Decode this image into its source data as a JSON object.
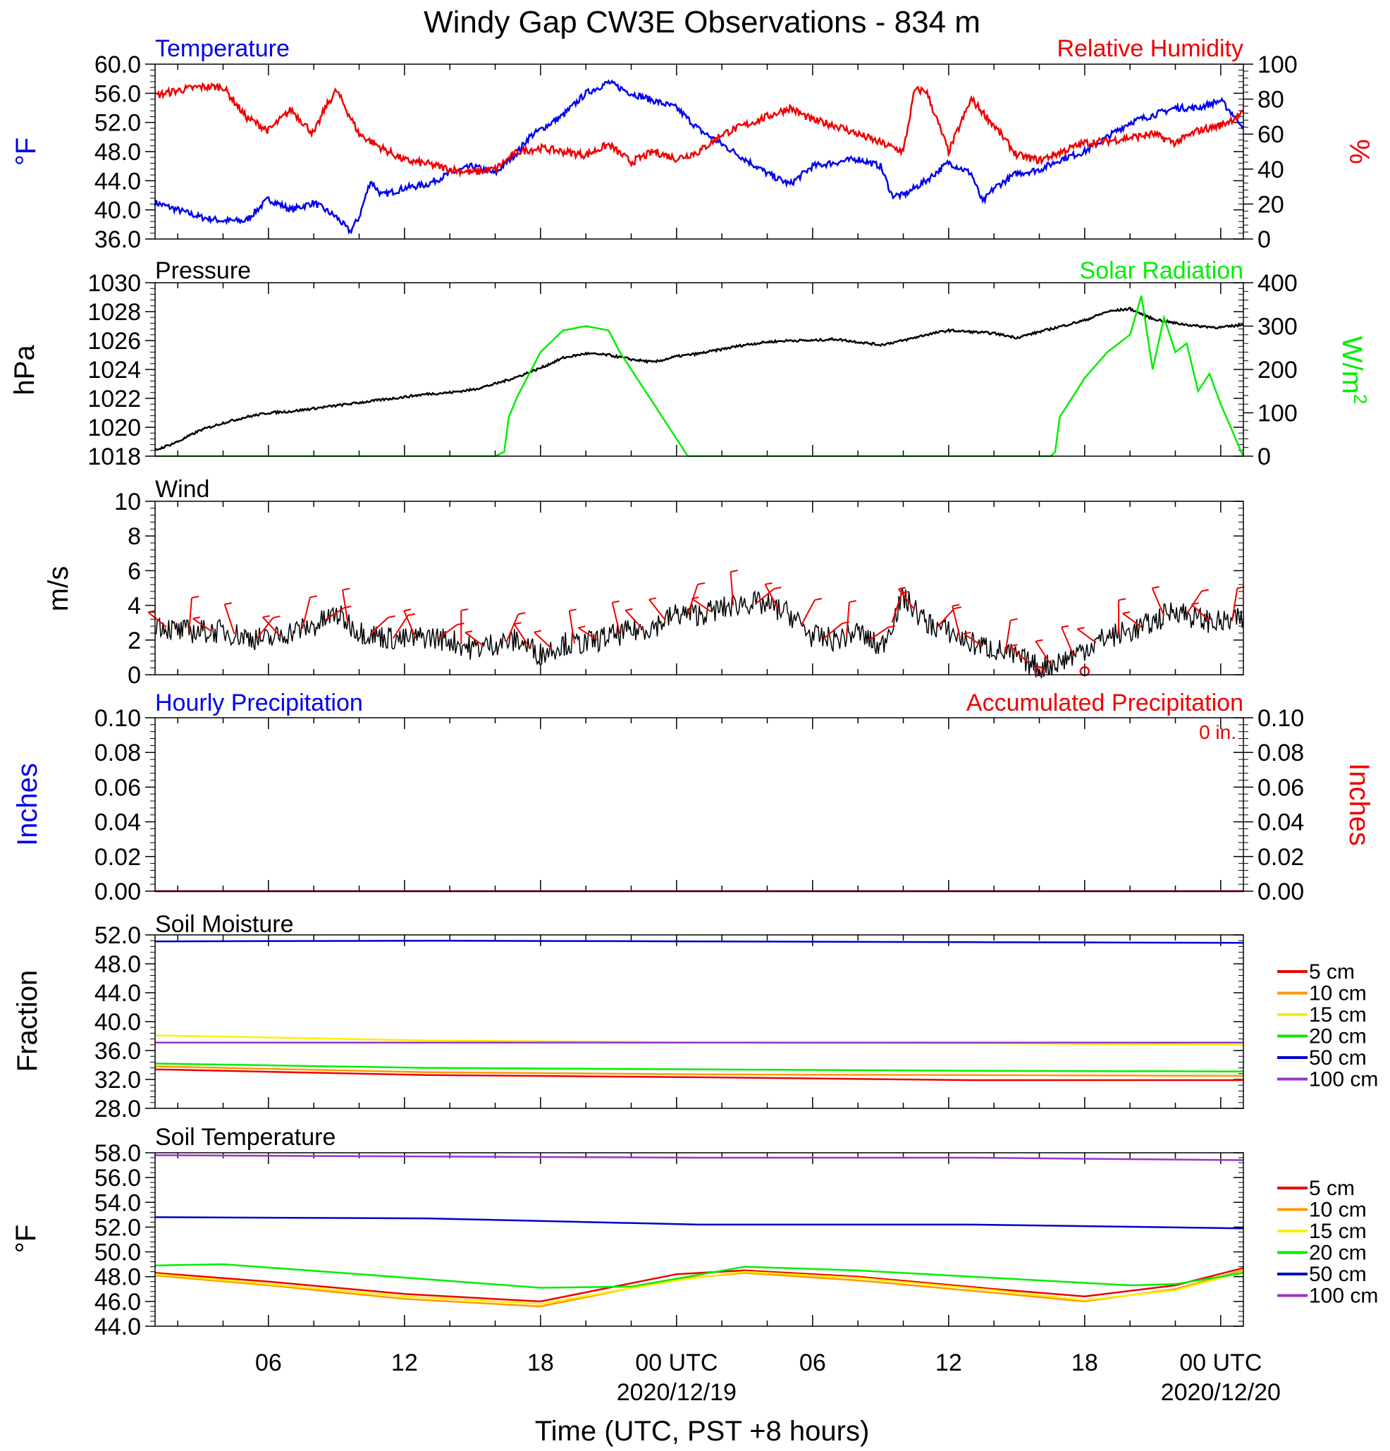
{
  "title": "Windy Gap CW3E Observations - 834 m",
  "xaxis": {
    "label": "Time (UTC, PST +8 hours)",
    "ticks": [
      {
        "hour": 6,
        "label": "06",
        "date": ""
      },
      {
        "hour": 12,
        "label": "12",
        "date": ""
      },
      {
        "hour": 18,
        "label": "18",
        "date": ""
      },
      {
        "hour": 24,
        "label": "00 UTC",
        "date": "2020/12/19"
      },
      {
        "hour": 30,
        "label": "06",
        "date": ""
      },
      {
        "hour": 36,
        "label": "12",
        "date": ""
      },
      {
        "hour": 42,
        "label": "18",
        "date": ""
      },
      {
        "hour": 48,
        "label": "00 UTC",
        "date": "2020/12/20"
      }
    ],
    "range_hours": [
      1,
      49
    ]
  },
  "colors": {
    "blue": "#0000ee",
    "red": "#ee0000",
    "green": "#00ee00",
    "black": "#000000",
    "orange": "#ff9900",
    "yellow": "#ffee00",
    "purple": "#9933cc",
    "darkblue": "#0000cc"
  },
  "panels": {
    "temp_rh": {
      "label_left": "Temperature",
      "label_right": "Relative Humidity",
      "ylabel_left": "°F",
      "ylabel_right": "%",
      "left_ticks": [
        "36.0",
        "40.0",
        "44.0",
        "48.0",
        "52.0",
        "56.0",
        "60.0"
      ],
      "right_ticks": [
        "0",
        "20",
        "40",
        "60",
        "80",
        "100"
      ]
    },
    "pressure_solar": {
      "label_left": "Pressure",
      "label_right": "Solar Radiation",
      "ylabel_left": "hPa",
      "ylabel_right": "W/m",
      "ylabel_right_sup": "2",
      "left_ticks": [
        "1018",
        "1020",
        "1022",
        "1024",
        "1026",
        "1028",
        "1030"
      ],
      "right_ticks": [
        "0",
        "100",
        "200",
        "300",
        "400"
      ]
    },
    "wind": {
      "label_left": "Wind",
      "ylabel_left": "m/s",
      "left_ticks": [
        "0",
        "2",
        "4",
        "6",
        "8",
        "10"
      ]
    },
    "precip": {
      "label_left": "Hourly Precipitation",
      "label_right": "Accumulated Precipitation",
      "total_text": "0 in.",
      "ylabel_left": "Inches",
      "ylabel_right": "Inches",
      "left_ticks": [
        "0.00",
        "0.02",
        "0.04",
        "0.06",
        "0.08",
        "0.10"
      ],
      "right_ticks": [
        "0.00",
        "0.02",
        "0.04",
        "0.06",
        "0.08",
        "0.10"
      ]
    },
    "soil_moisture": {
      "label_left": "Soil Moisture",
      "ylabel_left": "Fraction",
      "left_ticks": [
        "28.0",
        "32.0",
        "36.0",
        "40.0",
        "44.0",
        "48.0",
        "52.0"
      ],
      "legend": [
        "5 cm",
        "10 cm",
        "15 cm",
        "20 cm",
        "50 cm",
        "100 cm"
      ]
    },
    "soil_temp": {
      "label_left": "Soil Temperature",
      "ylabel_left": "°F",
      "left_ticks": [
        "44.0",
        "46.0",
        "48.0",
        "50.0",
        "52.0",
        "54.0",
        "56.0",
        "58.0"
      ],
      "legend": [
        "5 cm",
        "10 cm",
        "15 cm",
        "20 cm",
        "50 cm",
        "100 cm"
      ]
    }
  },
  "chart_data": [
    {
      "type": "line",
      "name": "temp_rh",
      "x_unit": "hours since 2020-12-18 00 UTC",
      "ylim": [
        36,
        60
      ],
      "y2lim": [
        0,
        100
      ],
      "series": [
        {
          "name": "Temperature",
          "color": "blue",
          "axis": "left",
          "x": [
            1,
            2,
            3,
            4,
            5,
            6,
            7,
            8,
            9,
            9.6,
            10,
            10.5,
            11,
            12,
            13,
            14,
            15,
            16,
            17,
            17.5,
            18,
            19,
            20,
            21,
            22,
            23,
            24,
            25,
            26,
            27,
            28,
            29,
            30,
            31,
            32,
            33,
            33.5,
            34,
            35,
            36,
            37,
            37.5,
            38,
            39,
            40,
            41,
            42,
            43,
            44,
            45,
            46,
            47,
            48,
            49
          ],
          "y": [
            41,
            40,
            39,
            38.5,
            38.5,
            41.5,
            40,
            41,
            39,
            37,
            39,
            44,
            42,
            43,
            43.5,
            45,
            46,
            45,
            48,
            50,
            51,
            53,
            56,
            57.5,
            56,
            55,
            54,
            51,
            49,
            47,
            45,
            43.5,
            46,
            46.5,
            47,
            46,
            42,
            42,
            44,
            46.5,
            45,
            41,
            43,
            45,
            45.5,
            47,
            48,
            50,
            52,
            53,
            54,
            54,
            55,
            51.5
          ]
        },
        {
          "name": "Relative Humidity",
          "color": "red",
          "axis": "right",
          "x": [
            1,
            2,
            3,
            4,
            5,
            6,
            7,
            8,
            8.5,
            9,
            10,
            11,
            12,
            13,
            14,
            15,
            16,
            17,
            18,
            19,
            20,
            21,
            22,
            23,
            24,
            25,
            26,
            27,
            28,
            29,
            30,
            31,
            32,
            33,
            34,
            34.5,
            35,
            36,
            37,
            38,
            39,
            40,
            41,
            42,
            43,
            44,
            45,
            46,
            47,
            48,
            49
          ],
          "y": [
            82,
            85,
            87,
            87,
            70,
            62,
            74,
            60,
            75,
            85,
            60,
            52,
            45,
            43,
            40,
            38,
            40,
            50,
            52,
            50,
            48,
            54,
            44,
            50,
            46,
            50,
            60,
            65,
            70,
            75,
            68,
            65,
            60,
            55,
            50,
            85,
            85,
            50,
            80,
            65,
            48,
            45,
            50,
            55,
            56,
            58,
            60,
            55,
            62,
            65,
            72
          ]
        }
      ]
    },
    {
      "type": "line",
      "name": "pressure_solar",
      "ylim": [
        1018,
        1030
      ],
      "y2lim": [
        0,
        400
      ],
      "series": [
        {
          "name": "Pressure",
          "color": "black",
          "axis": "left",
          "x": [
            1,
            2,
            3,
            4,
            5,
            6,
            7,
            8,
            9,
            10,
            11,
            12,
            13,
            14,
            15,
            16,
            17,
            18,
            19,
            20,
            21,
            22,
            23,
            24,
            25,
            26,
            27,
            28,
            29,
            30,
            31,
            32,
            33,
            34,
            35,
            36,
            37,
            38,
            39,
            40,
            41,
            42,
            43,
            44,
            45,
            46,
            47,
            48,
            49
          ],
          "y": [
            1018.4,
            1019,
            1019.8,
            1020.3,
            1020.7,
            1021,
            1021.1,
            1021.3,
            1021.5,
            1021.7,
            1021.9,
            1022.1,
            1022.3,
            1022.4,
            1022.6,
            1023,
            1023.5,
            1024.1,
            1024.8,
            1025.1,
            1025.0,
            1024.7,
            1024.5,
            1024.9,
            1025.1,
            1025.4,
            1025.7,
            1025.9,
            1026.0,
            1026.0,
            1026.1,
            1025.9,
            1025.7,
            1026.0,
            1026.4,
            1026.7,
            1026.6,
            1026.5,
            1026.2,
            1026.6,
            1027.0,
            1027.4,
            1028.0,
            1028.2,
            1027.5,
            1027.2,
            1027.0,
            1026.9,
            1027.1
          ]
        },
        {
          "name": "Solar Radiation",
          "color": "green",
          "axis": "right",
          "x": [
            1,
            10,
            16,
            16.4,
            16.6,
            17,
            18,
            19,
            20,
            21,
            21.5,
            22,
            23,
            24,
            24.5,
            25,
            30,
            38,
            40.5,
            40.7,
            40.9,
            42,
            43,
            44,
            44.5,
            45,
            45.5,
            46,
            46.5,
            47,
            47.5,
            48,
            48.5,
            48.9,
            49
          ],
          "y": [
            0,
            0,
            0,
            10,
            90,
            140,
            240,
            290,
            300,
            290,
            240,
            200,
            120,
            40,
            0,
            0,
            0,
            0,
            0,
            10,
            90,
            180,
            240,
            280,
            370,
            200,
            320,
            240,
            260,
            150,
            190,
            120,
            60,
            10,
            0
          ]
        }
      ]
    },
    {
      "type": "line",
      "name": "wind",
      "ylim": [
        0,
        10
      ],
      "series": [
        {
          "name": "Wind",
          "color": "black",
          "x": [
            1,
            2,
            3,
            4,
            5,
            6,
            7,
            8,
            9,
            10,
            11,
            12,
            13,
            14,
            15,
            16,
            17,
            18,
            19,
            20,
            21,
            22,
            23,
            24,
            25,
            26,
            27,
            28,
            29,
            30,
            31,
            32,
            33,
            34,
            35,
            36,
            37,
            38,
            39,
            40,
            41,
            42,
            43,
            44,
            45,
            46,
            47,
            48,
            49
          ],
          "y": [
            3,
            2.5,
            2.5,
            2.5,
            2.2,
            2,
            2.5,
            2.8,
            3.5,
            2.5,
            2.2,
            2.0,
            2.2,
            2.0,
            1.5,
            1.8,
            2.0,
            1.2,
            1.8,
            1.8,
            2.2,
            2.5,
            2.8,
            3.5,
            3.5,
            3.8,
            4.2,
            4.0,
            3.5,
            2.2,
            2.0,
            2.5,
            1.5,
            4.5,
            3.0,
            2.5,
            1.8,
            1.5,
            1.0,
            0.4,
            0.8,
            1.5,
            2.2,
            2.5,
            3.0,
            3.8,
            3.2,
            3.0,
            3.2
          ]
        }
      ]
    },
    {
      "type": "line",
      "name": "precip",
      "ylim": [
        0,
        0.1
      ],
      "series": [
        {
          "name": "Hourly Precipitation",
          "color": "blue",
          "x": [
            1,
            49
          ],
          "y": [
            0,
            0
          ]
        },
        {
          "name": "Accumulated Precipitation",
          "color": "red",
          "x": [
            1,
            49
          ],
          "y": [
            0,
            0
          ]
        }
      ]
    },
    {
      "type": "line",
      "name": "soil_moisture",
      "ylim": [
        28,
        52
      ],
      "series": [
        {
          "name": "5 cm",
          "color": "red",
          "x": [
            1,
            13,
            25,
            37,
            49
          ],
          "y": [
            33.4,
            32.6,
            32.3,
            31.9,
            31.9
          ]
        },
        {
          "name": "10 cm",
          "color": "orange",
          "x": [
            1,
            13,
            25,
            37,
            49
          ],
          "y": [
            33.8,
            33.0,
            32.7,
            32.6,
            32.5
          ]
        },
        {
          "name": "15 cm",
          "color": "yellow",
          "x": [
            1,
            13,
            25,
            37,
            49
          ],
          "y": [
            38.1,
            37.4,
            37.1,
            37.0,
            36.8
          ]
        },
        {
          "name": "20 cm",
          "color": "green",
          "x": [
            1,
            13,
            25,
            37,
            49
          ],
          "y": [
            34.2,
            33.6,
            33.4,
            33.2,
            33.1
          ]
        },
        {
          "name": "50 cm",
          "color": "darkblue",
          "x": [
            1,
            13,
            25,
            37,
            49
          ],
          "y": [
            51.1,
            51.2,
            51.1,
            51.0,
            50.9
          ]
        },
        {
          "name": "100 cm",
          "color": "purple",
          "x": [
            1,
            13,
            25,
            37,
            49
          ],
          "y": [
            37.1,
            37.1,
            37.1,
            37.1,
            37.1
          ]
        }
      ]
    },
    {
      "type": "line",
      "name": "soil_temp",
      "ylim": [
        44,
        58
      ],
      "series": [
        {
          "name": "5 cm",
          "color": "red",
          "x": [
            1,
            6,
            12,
            18,
            24,
            27,
            32,
            38,
            42,
            46,
            49
          ],
          "y": [
            48.3,
            47.6,
            46.6,
            46.0,
            48.2,
            48.5,
            48.0,
            47.0,
            46.4,
            47.3,
            48.7
          ]
        },
        {
          "name": "10 cm",
          "color": "orange",
          "x": [
            1,
            6,
            12,
            18,
            24,
            27,
            32,
            38,
            42,
            46,
            49
          ],
          "y": [
            48.1,
            47.3,
            46.2,
            45.6,
            47.8,
            48.3,
            47.7,
            46.7,
            46.0,
            47.0,
            48.5
          ]
        },
        {
          "name": "15 cm",
          "color": "yellow",
          "x": [
            1,
            6,
            12,
            18,
            24,
            27,
            32,
            38,
            42,
            46,
            49
          ],
          "y": [
            48.2,
            47.4,
            46.4,
            45.8,
            47.7,
            48.4,
            47.9,
            46.9,
            46.1,
            46.9,
            48.4
          ]
        },
        {
          "name": "20 cm",
          "color": "green",
          "x": [
            1,
            4,
            10,
            18,
            22,
            27,
            32,
            38,
            44,
            46,
            49
          ],
          "y": [
            48.9,
            49.0,
            48.2,
            47.1,
            47.2,
            48.8,
            48.5,
            47.9,
            47.3,
            47.4,
            48.3
          ]
        },
        {
          "name": "50 cm",
          "color": "darkblue",
          "x": [
            1,
            13,
            25,
            37,
            49
          ],
          "y": [
            52.8,
            52.7,
            52.2,
            52.2,
            51.9
          ]
        },
        {
          "name": "100 cm",
          "color": "purple",
          "x": [
            1,
            13,
            25,
            37,
            49
          ],
          "y": [
            57.8,
            57.7,
            57.6,
            57.6,
            57.4
          ]
        }
      ]
    }
  ]
}
